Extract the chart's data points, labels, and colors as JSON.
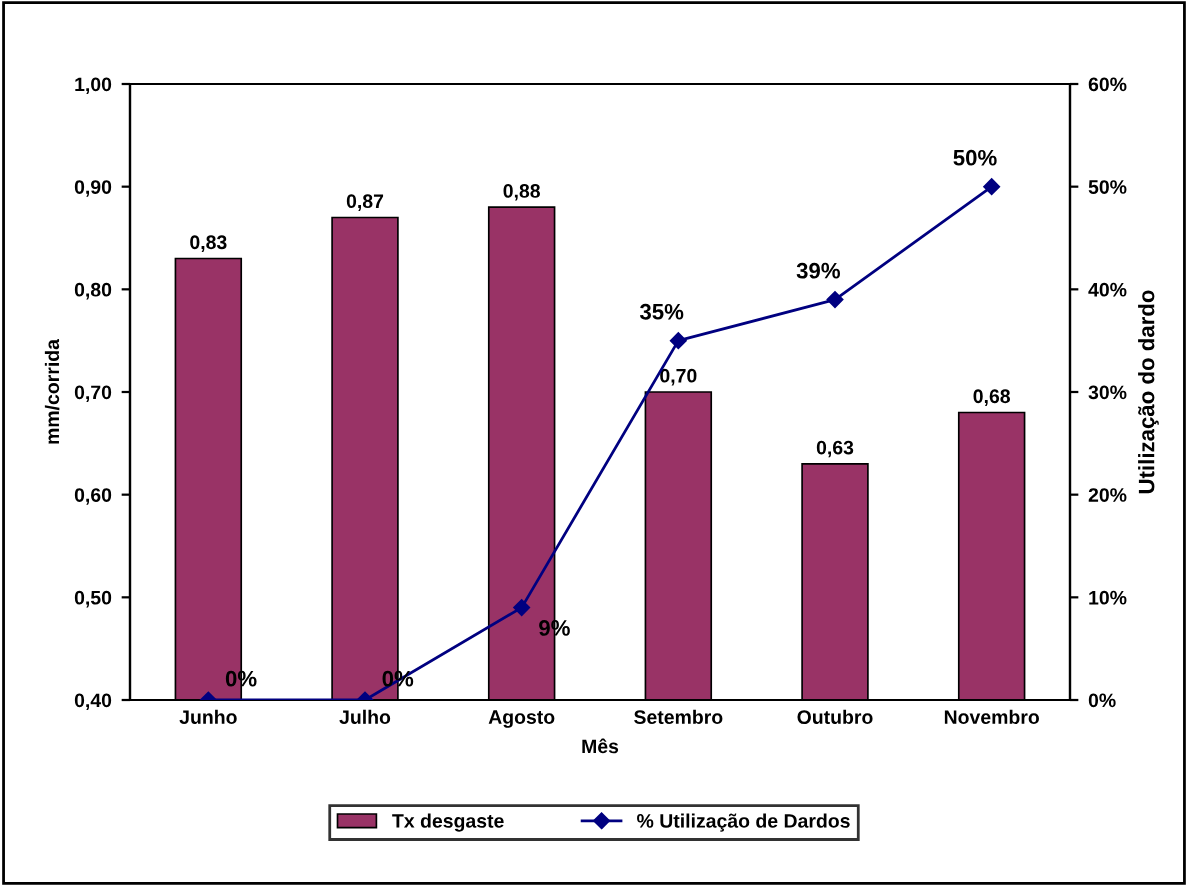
{
  "chart_data": {
    "type": "bar",
    "xlabel": "Mês",
    "ylabel": "mm/corrida",
    "y2label": "Utilização do dardo",
    "categories": [
      "Junho",
      "Julho",
      "Agosto",
      "Setembro",
      "Outubro",
      "Novembro"
    ],
    "series": [
      {
        "name": "Tx desgaste",
        "color": "#993366",
        "values": [
          0.83,
          0.87,
          0.88,
          0.7,
          0.63,
          0.68
        ],
        "value_labels": [
          "0,83",
          "0,87",
          "0,88",
          "0,70",
          "0,63",
          "0,68"
        ]
      },
      {
        "name": "% Utilização de Dardos",
        "type": "line",
        "axis": "y2",
        "color": "#000080",
        "marker": "diamond",
        "values": [
          0,
          0,
          9,
          35,
          39,
          50
        ],
        "value_labels": [
          "0%",
          "0%",
          "9%",
          "35%",
          "39%",
          "50%"
        ]
      }
    ],
    "ylim": [
      0.4,
      1.0
    ],
    "yticks": [
      {
        "value": 0.4,
        "label": "0,40"
      },
      {
        "value": 0.5,
        "label": "0,50"
      },
      {
        "value": 0.6,
        "label": "0,60"
      },
      {
        "value": 0.7,
        "label": "0,70"
      },
      {
        "value": 0.8,
        "label": "0,80"
      },
      {
        "value": 0.9,
        "label": "0,90"
      },
      {
        "value": 1.0,
        "label": "1,00"
      }
    ],
    "y2lim": [
      0,
      60
    ],
    "y2ticks": [
      {
        "value": 0,
        "label": "0%"
      },
      {
        "value": 10,
        "label": "10%"
      },
      {
        "value": 20,
        "label": "20%"
      },
      {
        "value": 30,
        "label": "30%"
      },
      {
        "value": 40,
        "label": "40%"
      },
      {
        "value": 50,
        "label": "50%"
      },
      {
        "value": 60,
        "label": "60%"
      }
    ],
    "legend": "bottom",
    "grid": false
  }
}
